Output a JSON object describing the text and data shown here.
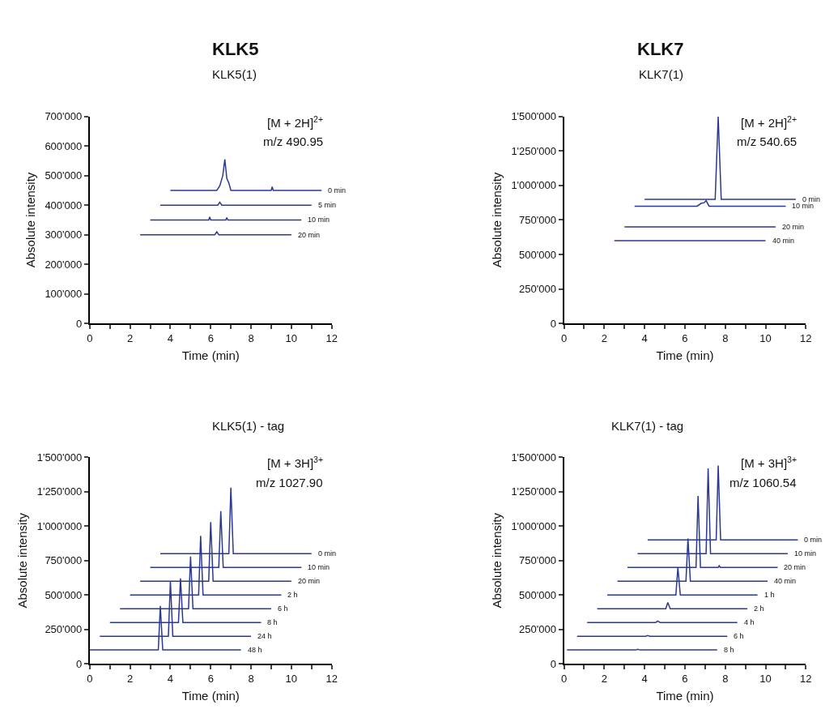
{
  "chart_data": [
    {
      "type": "line",
      "title": "KLK5",
      "subtitle": "KLK5(1)",
      "xlabel": "Time (min)",
      "ylabel": "Absolute intensity",
      "annotations": [
        "[M + 2H]$^{2+}$",
        "m/z 490.95"
      ],
      "legend": false,
      "xlim": [
        0,
        12
      ],
      "xticks": [
        0,
        {
          "value": 1,
          "label": null
        },
        2,
        {
          "value": 3,
          "label": null
        },
        4,
        {
          "value": 5,
          "label": null
        },
        6,
        {
          "value": 7,
          "label": null
        },
        8,
        {
          "value": 9,
          "label": null
        },
        10,
        {
          "value": 11,
          "label": null
        },
        12
      ],
      "ylim": [
        0,
        700000
      ],
      "yticks": [
        0,
        {
          "value": 100000,
          "label": "100'000"
        },
        {
          "value": 200000,
          "label": "200'000"
        },
        {
          "value": 300000,
          "label": "300'000"
        },
        {
          "value": 400000,
          "label": "400'000"
        },
        {
          "value": 500000,
          "label": "500'000"
        },
        {
          "value": 600000,
          "label": "600'000"
        },
        {
          "value": 700000,
          "label": "700'000"
        }
      ],
      "series": [
        {
          "name": "0 min",
          "color": "#2b3990",
          "x": [
            4,
            6.3,
            6.45,
            6.6,
            6.7,
            6.8,
            6.9,
            7.0,
            9.0,
            9.05,
            9.1,
            11.5
          ],
          "values": [
            450000,
            450000,
            465000,
            500000,
            555000,
            490000,
            475000,
            450000,
            450000,
            462000,
            450000,
            450000
          ]
        },
        {
          "name": "5 min",
          "color": "#2b3990",
          "x": [
            3.5,
            6.35,
            6.45,
            6.55,
            11
          ],
          "values": [
            400000,
            400000,
            410000,
            400000,
            400000
          ]
        },
        {
          "name": "10 min",
          "color": "#2b3990",
          "x": [
            3,
            5.9,
            5.95,
            6.0,
            6.75,
            6.8,
            6.85,
            10.5
          ],
          "values": [
            350000,
            350000,
            360000,
            350000,
            350000,
            358000,
            350000,
            350000
          ]
        },
        {
          "name": "20 min",
          "color": "#2b3990",
          "x": [
            2.5,
            6.2,
            6.3,
            6.4,
            10
          ],
          "values": [
            300000,
            300000,
            310000,
            300000,
            300000
          ]
        }
      ]
    },
    {
      "type": "line",
      "title": "KLK7",
      "subtitle": "KLK7(1)",
      "xlabel": "Time (min)",
      "ylabel": "Absolute intensity",
      "annotations": [
        "[M + 2H]$^{2+}$",
        "m/z 540.65"
      ],
      "legend": false,
      "xlim": [
        0,
        12
      ],
      "xticks": [
        0,
        {
          "value": 1,
          "label": null
        },
        2,
        {
          "value": 3,
          "label": null
        },
        4,
        {
          "value": 5,
          "label": null
        },
        6,
        {
          "value": 7,
          "label": null
        },
        8,
        {
          "value": 9,
          "label": null
        },
        10,
        {
          "value": 11,
          "label": null
        },
        12
      ],
      "ylim": [
        0,
        1500000
      ],
      "yticks": [
        0,
        {
          "value": 250000,
          "label": "250'000"
        },
        {
          "value": 500000,
          "label": "500'000"
        },
        {
          "value": 750000,
          "label": "750'000"
        },
        {
          "value": 1000000,
          "label": "1'000'000"
        },
        {
          "value": 1250000,
          "label": "1'250'000"
        },
        {
          "value": 1500000,
          "label": "1'500'000"
        }
      ],
      "series": [
        {
          "name": "0 min",
          "color": "#2b3990",
          "x": [
            4,
            7.5,
            7.65,
            7.8,
            11.5
          ],
          "values": [
            900000,
            900000,
            1500000,
            900000,
            900000
          ]
        },
        {
          "name": "10 min",
          "color": "#2b3990",
          "x": [
            3.5,
            6.6,
            6.8,
            6.95,
            7.05,
            7.2,
            11
          ],
          "values": [
            850000,
            850000,
            870000,
            875000,
            890000,
            850000,
            850000
          ]
        },
        {
          "name": "20 min",
          "color": "#2b3990",
          "x": [
            3,
            10.5
          ],
          "values": [
            700000,
            700000
          ]
        },
        {
          "name": "40 min",
          "color": "#2b3990",
          "x": [
            2.5,
            10
          ],
          "values": [
            600000,
            600000
          ]
        }
      ]
    },
    {
      "type": "line",
      "title": "KLK5(1) - tag",
      "xlabel": "Time (min)",
      "ylabel": "Absolute intensity",
      "annotations": [
        "[M + 3H]$^{3+}$",
        "m/z 1027.90"
      ],
      "legend": false,
      "xlim": [
        0,
        12
      ],
      "xticks": [
        0,
        {
          "value": 1,
          "label": null
        },
        2,
        {
          "value": 3,
          "label": null
        },
        4,
        {
          "value": 5,
          "label": null
        },
        6,
        {
          "value": 7,
          "label": null
        },
        8,
        {
          "value": 9,
          "label": null
        },
        10,
        {
          "value": 11,
          "label": null
        },
        12
      ],
      "ylim": [
        0,
        1500000
      ],
      "yticks": [
        0,
        {
          "value": 250000,
          "label": "250'000"
        },
        {
          "value": 500000,
          "label": "500'000"
        },
        {
          "value": 750000,
          "label": "750'000"
        },
        {
          "value": 1000000,
          "label": "1'000'000"
        },
        {
          "value": 1250000,
          "label": "1'250'000"
        },
        {
          "value": 1500000,
          "label": "1'500'000"
        }
      ],
      "series": [
        {
          "name": "0 min",
          "color": "#2b3990",
          "x": [
            3.5,
            6.9,
            7.0,
            7.12,
            11
          ],
          "values": [
            800000,
            800000,
            1280000,
            800000,
            800000
          ]
        },
        {
          "name": "10 min",
          "color": "#2b3990",
          "x": [
            3.0,
            6.4,
            6.5,
            6.62,
            10.5
          ],
          "values": [
            700000,
            700000,
            1110000,
            700000,
            700000
          ]
        },
        {
          "name": "20 min",
          "color": "#2b3990",
          "x": [
            2.5,
            5.9,
            6.0,
            6.12,
            10
          ],
          "values": [
            600000,
            600000,
            1030000,
            600000,
            600000
          ]
        },
        {
          "name": "2 h",
          "color": "#2b3990",
          "x": [
            2.0,
            5.4,
            5.5,
            5.62,
            9.5
          ],
          "values": [
            500000,
            500000,
            930000,
            500000,
            500000
          ]
        },
        {
          "name": "6 h",
          "color": "#2b3990",
          "x": [
            1.5,
            4.9,
            5.0,
            5.12,
            9
          ],
          "values": [
            400000,
            400000,
            780000,
            400000,
            400000
          ]
        },
        {
          "name": "8 h",
          "color": "#2b3990",
          "x": [
            1.0,
            4.4,
            4.5,
            4.62,
            8.5
          ],
          "values": [
            300000,
            300000,
            620000,
            300000,
            300000
          ]
        },
        {
          "name": "24 h",
          "color": "#2b3990",
          "x": [
            0.5,
            3.9,
            4.0,
            4.12,
            8
          ],
          "values": [
            200000,
            200000,
            600000,
            200000,
            200000
          ]
        },
        {
          "name": "48 h",
          "color": "#2b3990",
          "x": [
            0,
            3.4,
            3.5,
            3.62,
            7.5
          ],
          "values": [
            100000,
            100000,
            420000,
            100000,
            100000
          ]
        }
      ]
    },
    {
      "type": "line",
      "title": "KLK7(1) - tag",
      "xlabel": "Time (min)",
      "ylabel": "Absolute intensity",
      "annotations": [
        "[M + 3H]$^{3+}$",
        "m/z 1060.54"
      ],
      "legend": false,
      "xlim": [
        0,
        12
      ],
      "xticks": [
        0,
        {
          "value": 1,
          "label": null
        },
        2,
        {
          "value": 3,
          "label": null
        },
        4,
        {
          "value": 5,
          "label": null
        },
        6,
        {
          "value": 7,
          "label": null
        },
        8,
        {
          "value": 9,
          "label": null
        },
        10,
        {
          "value": 11,
          "label": null
        },
        12
      ],
      "ylim": [
        0,
        1500000
      ],
      "yticks": [
        0,
        {
          "value": 250000,
          "label": "250'000"
        },
        {
          "value": 500000,
          "label": "500'000"
        },
        {
          "value": 750000,
          "label": "750'000"
        },
        {
          "value": 1000000,
          "label": "1'000'000"
        },
        {
          "value": 1250000,
          "label": "1'250'000"
        },
        {
          "value": 1500000,
          "label": "1'500'000"
        }
      ],
      "series": [
        {
          "name": "0 min",
          "color": "#2b3990",
          "x": [
            4.15,
            7.55,
            7.65,
            7.77,
            11.6
          ],
          "values": [
            900000,
            900000,
            1440000,
            900000,
            900000
          ]
        },
        {
          "name": "10 min",
          "color": "#2b3990",
          "x": [
            3.65,
            7.05,
            7.15,
            7.27,
            11.1
          ],
          "values": [
            800000,
            800000,
            1420000,
            800000,
            800000
          ]
        },
        {
          "name": "20 min",
          "color": "#2b3990",
          "x": [
            3.15,
            6.55,
            6.65,
            6.77,
            7.65,
            7.7,
            7.75,
            10.6
          ],
          "values": [
            700000,
            700000,
            1220000,
            700000,
            700000,
            712000,
            700000,
            700000
          ]
        },
        {
          "name": "40 min",
          "color": "#2b3990",
          "x": [
            2.65,
            6.05,
            6.15,
            6.27,
            10.1
          ],
          "values": [
            600000,
            600000,
            910000,
            600000,
            600000
          ]
        },
        {
          "name": "1 h",
          "color": "#2b3990",
          "x": [
            2.15,
            5.55,
            5.65,
            5.77,
            9.6
          ],
          "values": [
            500000,
            500000,
            700000,
            500000,
            500000
          ]
        },
        {
          "name": "2 h",
          "color": "#2b3990",
          "x": [
            1.65,
            5.05,
            5.15,
            5.27,
            9.1
          ],
          "values": [
            400000,
            400000,
            445000,
            400000,
            400000
          ]
        },
        {
          "name": "4 h",
          "color": "#2b3990",
          "x": [
            1.15,
            4.55,
            4.65,
            4.77,
            8.6
          ],
          "values": [
            300000,
            300000,
            310000,
            300000,
            300000
          ]
        },
        {
          "name": "6 h",
          "color": "#2b3990",
          "x": [
            0.65,
            4.05,
            4.15,
            4.27,
            8.1
          ],
          "values": [
            200000,
            200000,
            205000,
            200000,
            200000
          ]
        },
        {
          "name": "8 h",
          "color": "#2b3990",
          "x": [
            0.15,
            3.55,
            3.65,
            3.77,
            7.6
          ],
          "values": [
            100000,
            100000,
            105000,
            100000,
            100000
          ]
        }
      ]
    }
  ]
}
